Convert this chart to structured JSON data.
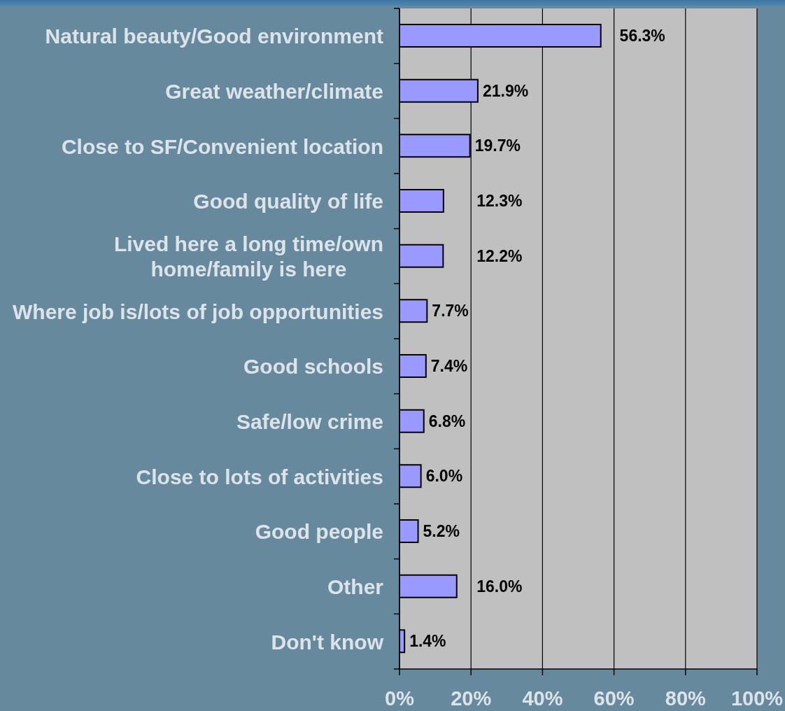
{
  "chart_data": {
    "type": "bar",
    "orientation": "horizontal",
    "categories": [
      "Natural beauty/Good environment",
      "Great weather/climate",
      "Close to SF/Convenient location",
      "Good quality of life",
      "Lived here a long time/own home/family is here",
      "Where job is/lots of job opportunities",
      "Good schools",
      "Safe/low crime",
      "Close to lots of activities",
      "Good people",
      "Other",
      "Don't know"
    ],
    "values": [
      56.3,
      21.9,
      19.7,
      12.3,
      12.2,
      7.7,
      7.4,
      6.8,
      6.0,
      5.2,
      16.0,
      1.4
    ],
    "value_labels": [
      "56.3%",
      "21.9%",
      "19.7%",
      "12.3%",
      "12.2%",
      "7.7%",
      "7.4%",
      "6.8%",
      "6.0%",
      "5.2%",
      "16.0%",
      "1.4%"
    ],
    "color": "#9999ff",
    "xlim": [
      0,
      100
    ],
    "xticks": [
      {
        "value": 0,
        "label": "0%"
      },
      {
        "value": 20,
        "label": "20%"
      },
      {
        "value": 40,
        "label": "40%"
      },
      {
        "value": 60,
        "label": "60%"
      },
      {
        "value": 80,
        "label": "80%"
      },
      {
        "value": 100,
        "label": "100%"
      }
    ],
    "grid": "x"
  }
}
